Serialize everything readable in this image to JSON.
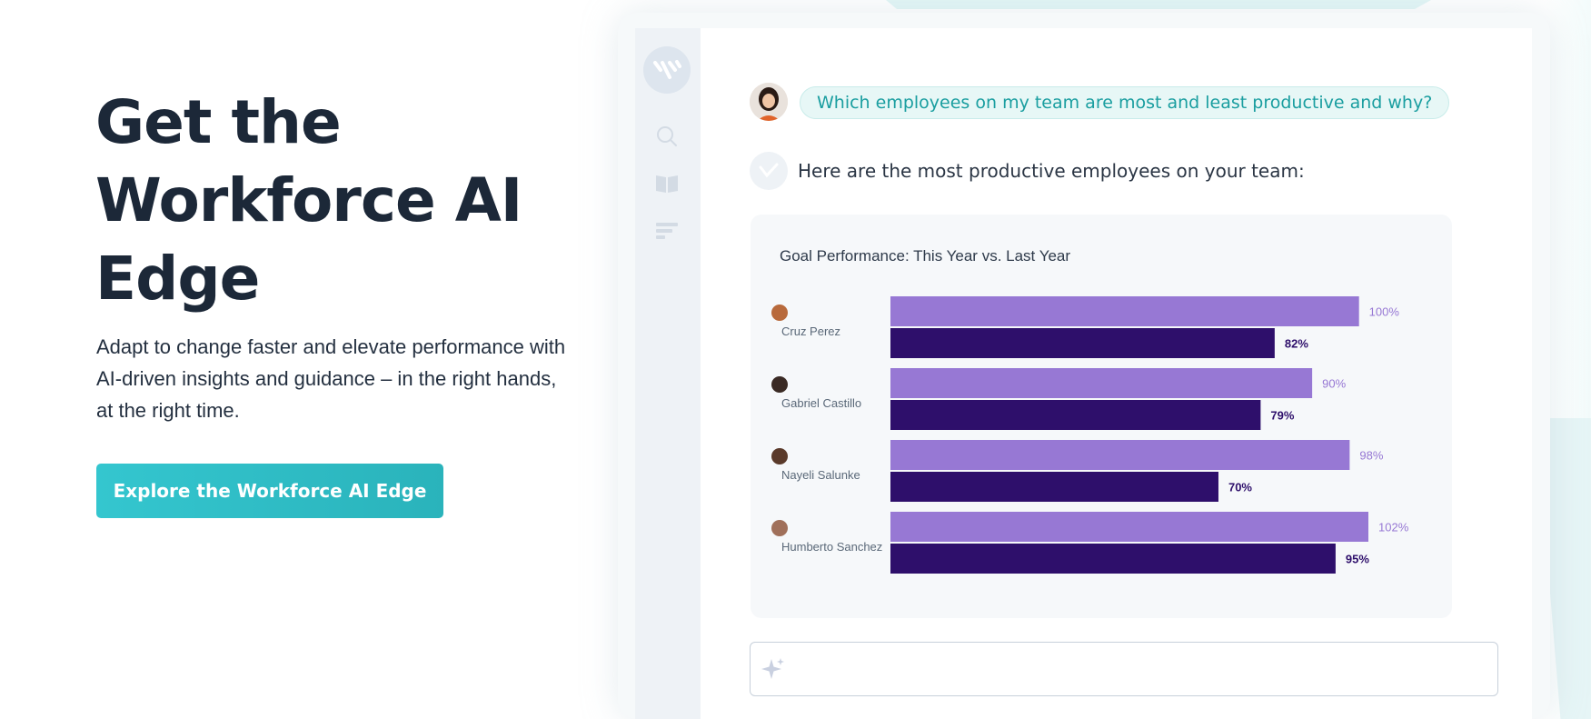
{
  "hero": {
    "title_line1": "Get the",
    "title_line2": "Workforce AI",
    "title_line3": "Edge",
    "subtitle": "Adapt to change faster and elevate performance with AI-driven insights and guidance – in the right hands, at the right time.",
    "cta_label": "Explore the Workforce AI Edge"
  },
  "sidebar": {
    "icons": [
      "logo-icon",
      "search-icon",
      "book-icon",
      "list-icon"
    ]
  },
  "chat": {
    "question": "Which employees on my team are most and least productive and why?",
    "answer": "Here are the most productive employees on your team:",
    "input_placeholder": ""
  },
  "colors": {
    "accent": "#2ab3bb",
    "this_year": "#9778d4",
    "last_year": "#2e0f6b",
    "question_text": "#1a9ea0"
  },
  "chart_data": {
    "type": "bar",
    "orientation": "horizontal",
    "title": "Goal Performance: This Year vs. Last Year",
    "categories": [
      "Cruz Perez",
      "Gabriel Castillo",
      "Nayeli Salunke",
      "Humberto Sanchez"
    ],
    "series": [
      {
        "values": [
          100,
          90,
          98,
          102
        ],
        "labels": [
          "100%",
          "90%",
          "98%",
          "102%"
        ],
        "color": "#9778d4"
      },
      {
        "values": [
          82,
          79,
          70,
          95
        ],
        "labels": [
          "82%",
          "79%",
          "70%",
          "95%"
        ],
        "color": "#2e0f6b"
      }
    ],
    "xlim": [
      0,
      102
    ],
    "grid": false,
    "legend": "none"
  }
}
